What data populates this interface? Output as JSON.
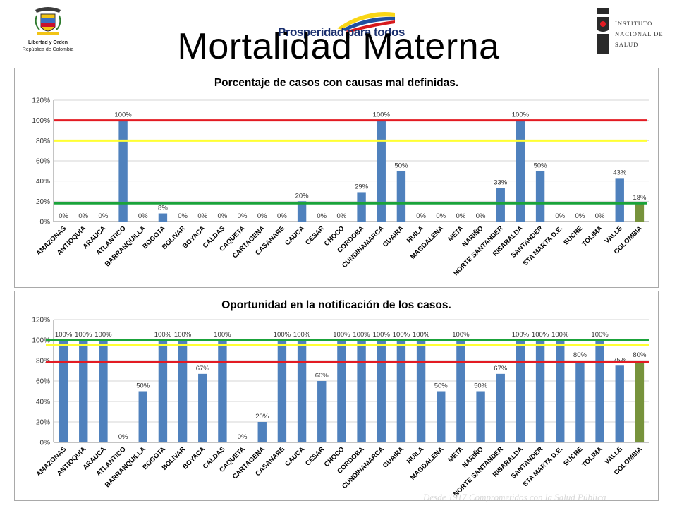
{
  "slide": {
    "title": "Mortalidad Materna",
    "footer": "Desde 1917 Comprometidos con la Salud Pública"
  },
  "logos": {
    "left": {
      "line1": "Libertad y Orden",
      "line2": "República de Colombia",
      "icon": "colombia-coat-of-arms"
    },
    "center": {
      "text": "Prosperidad para todos",
      "colors": [
        "#f9d616",
        "#1f4fa0",
        "#d7191c"
      ]
    },
    "right": {
      "line1": "INSTITUTO",
      "line2": "NACIONAL DE",
      "line3": "SALUD",
      "icon": "ins-logo-icon"
    }
  },
  "chart_data": [
    {
      "type": "bar",
      "title": "Porcentaje de casos con causas mal definidas.",
      "categories": [
        "AMAZONAS",
        "ANTIOQUIA",
        "ARAUCA",
        "ATLANTICO",
        "BARRANQUILLA",
        "BOGOTA",
        "BOLIVAR",
        "BOYACA",
        "CALDAS",
        "CAQUETA",
        "CARTAGENA",
        "CASANARE",
        "CAUCA",
        "CESAR",
        "CHOCO",
        "CORDOBA",
        "CUNDINAMARCA",
        "GUAIRA",
        "HUILA",
        "MAGDALENA",
        "META",
        "NARIÑO",
        "NORTE SANTANDER",
        "RISARALDA",
        "SANTANDER",
        "STA MARTA D.E.",
        "SUCRE",
        "TOLIMA",
        "VALLE",
        "COLOMBIA"
      ],
      "values": [
        0,
        0,
        0,
        100,
        0,
        8,
        0,
        0,
        0,
        0,
        0,
        0,
        20,
        0,
        0,
        29,
        100,
        50,
        0,
        0,
        0,
        0,
        33,
        100,
        50,
        0,
        0,
        0,
        43,
        18
      ],
      "data_labels": [
        "0%",
        "0%",
        "0%",
        "100%",
        "0%",
        "8%",
        "0%",
        "0%",
        "0%",
        "0%",
        "0%",
        "0%",
        "20%",
        "0%",
        "0%",
        "29%",
        "100%",
        "50%",
        "0%",
        "0%",
        "0%",
        "0%",
        "33%",
        "100%",
        "50%",
        "0%",
        "0%",
        "0%",
        "43%",
        "18%"
      ],
      "ylim": [
        0,
        120
      ],
      "yticks": [
        "0%",
        "20%",
        "40%",
        "60%",
        "80%",
        "100%",
        "120%"
      ],
      "bar_color": "#4f81bd",
      "highlight_index": 29,
      "highlight_color": "#77933c",
      "reference_lines": [
        {
          "value": 100,
          "color": "#e31b23"
        },
        {
          "value": 80,
          "color": "#ffff33"
        },
        {
          "value": 18,
          "color": "#1aa33a"
        }
      ],
      "grid": true,
      "legend": "none"
    },
    {
      "type": "bar",
      "title": "Oportunidad en la notificación de los casos.",
      "categories": [
        "AMAZONAS",
        "ANTIOQUIA",
        "ARAUCA",
        "ATLANTICO",
        "BARRANQUILLA",
        "BOGOTA",
        "BOLIVAR",
        "BOYACA",
        "CALDAS",
        "CAQUETA",
        "CARTAGENA",
        "CASANARE",
        "CAUCA",
        "CESAR",
        "CHOCO",
        "CORDOBA",
        "CUNDINAMARCA",
        "GUAIRA",
        "HUILA",
        "MAGDALENA",
        "META",
        "NARIÑO",
        "NORTE SANTANDER",
        "RISARALDA",
        "SANTANDER",
        "STA MARTA D.E.",
        "SUCRE",
        "TOLIMA",
        "VALLE",
        "COLOMBIA"
      ],
      "values": [
        100,
        100,
        100,
        0,
        50,
        100,
        100,
        67,
        100,
        0,
        20,
        100,
        100,
        60,
        100,
        100,
        100,
        100,
        100,
        50,
        100,
        50,
        67,
        100,
        100,
        100,
        80,
        100,
        75,
        80
      ],
      "data_labels": [
        "100%",
        "100%",
        "100%",
        "0%",
        "50%",
        "100%",
        "100%",
        "67%",
        "100%",
        "0%",
        "20%",
        "100%",
        "100%",
        "60%",
        "100%",
        "100%",
        "100%",
        "100%",
        "100%",
        "50%",
        "100%",
        "50%",
        "67%",
        "100%",
        "100%",
        "100%",
        "80%",
        "100%",
        "75%",
        "80%"
      ],
      "ylim": [
        0,
        120
      ],
      "yticks": [
        "0%",
        "20%",
        "40%",
        "60%",
        "80%",
        "100%",
        "120%"
      ],
      "bar_color": "#4f81bd",
      "highlight_index": 29,
      "highlight_color": "#77933c",
      "reference_lines": [
        {
          "value": 100,
          "color": "#1aa33a"
        },
        {
          "value": 95,
          "color": "#ffff33"
        },
        {
          "value": 79,
          "color": "#e31b23"
        }
      ],
      "grid": true,
      "legend": "none"
    }
  ]
}
